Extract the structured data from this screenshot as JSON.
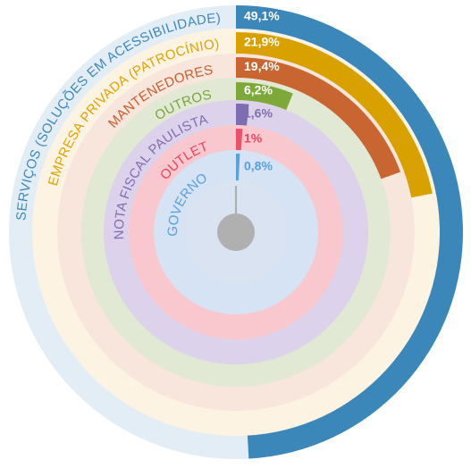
{
  "chart_data": {
    "type": "radial-bar",
    "series": [
      {
        "name": "SERVIÇOS (SOLUÇÕES EM ACESSIBILIDADE)",
        "value": 49.1,
        "value_label": "49,1%",
        "color": "#3c87b9",
        "track_color": "#e2edf6",
        "label_color": "#3f88bc",
        "value_label_color": "#ffffff"
      },
      {
        "name": "EMPRESA PRIVADA (PATROCÍNIO)",
        "value": 21.9,
        "value_label": "21,9%",
        "color": "#d9a100",
        "track_color": "#fdf3e3",
        "label_color": "#e2a300",
        "value_label_color": "#ffffff"
      },
      {
        "name": "MANTENEDORES",
        "value": 19.4,
        "value_label": "19,4%",
        "color": "#c96530",
        "track_color": "#f8e5dc",
        "label_color": "#c8602c",
        "value_label_color": "#ffffff"
      },
      {
        "name": "OUTROS",
        "value": 6.2,
        "value_label": "6,2%",
        "color": "#7fa83a",
        "track_color": "#e1e9d5",
        "label_color": "#7ba43a",
        "value_label_color": "#ffffff"
      },
      {
        "name": "NOTA FISCAL PAULISTA",
        "value": 1.6,
        "value_label": "1,6%",
        "color": "#7d6eb2",
        "track_color": "#ddd2ec",
        "label_color": "#7f6eb1",
        "value_label_color": "#7f6eb1"
      },
      {
        "name": "OUTLET",
        "value": 1.0,
        "value_label": "1%",
        "color": "#ee4f6a",
        "track_color": "#f9c8cf",
        "label_color": "#e8475f",
        "value_label_color": "#e8475f"
      },
      {
        "name": "GOVERNO",
        "value": 0.8,
        "value_label": "0,8%",
        "color": "#5aa3d9",
        "track_color": "#d5e3f4",
        "label_color": "#58a1d8",
        "value_label_color": "#58a1d8"
      }
    ]
  }
}
